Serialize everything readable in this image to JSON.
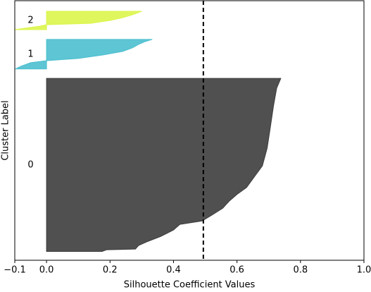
{
  "chart_data": {
    "type": "silhouette",
    "xlabel": "Silhouette Coefficient Values",
    "ylabel": "Cluster Label",
    "xlim": [
      -0.1,
      1.0
    ],
    "xticks": [
      {
        "value": -0.1,
        "label": "−0.1"
      },
      {
        "value": 0,
        "label": "0.0"
      },
      0.2,
      0.4,
      0.6,
      0.8,
      {
        "value": 1.0,
        "label": "1.0"
      }
    ],
    "ylim": [
      0,
      264
    ],
    "yticks": [],
    "vline": 0.494,
    "series": [
      {
        "name": "0",
        "color": "#3d3d3d",
        "y": [
          9,
          10.7,
          11.4,
          15,
          18.6,
          24.3,
          30.8,
          36.5,
          40,
          45.8,
          52.9,
          60,
          67,
          74,
          85,
          96,
          114,
          135,
          157,
          175,
          185
        ],
        "values": [
          0.175,
          0.19,
          0.28,
          0.29,
          0.315,
          0.36,
          0.4,
          0.42,
          0.49,
          0.52,
          0.555,
          0.575,
          0.6,
          0.63,
          0.655,
          0.68,
          0.695,
          0.705,
          0.715,
          0.725,
          0.738
        ]
      },
      {
        "name": "1",
        "color": "#4bbfcf",
        "y": [
          194.6,
          197.4,
          201,
          203,
          205.3,
          208.9,
          212.4,
          216,
          219.6,
          222.4,
          224.6
        ],
        "values": [
          -0.098,
          -0.08,
          -0.05,
          0.0,
          0.1,
          0.18,
          0.24,
          0.27,
          0.29,
          0.31,
          0.333
        ]
      },
      {
        "name": "2",
        "color": "#dcf54a",
        "y": [
          234.6,
          238.2,
          239.6,
          241,
          243.9,
          246.8,
          249.6,
          253.2
        ],
        "values": [
          -0.1,
          -0.02,
          0.0,
          0.14,
          0.2,
          0.24,
          0.27,
          0.3
        ]
      }
    ]
  }
}
